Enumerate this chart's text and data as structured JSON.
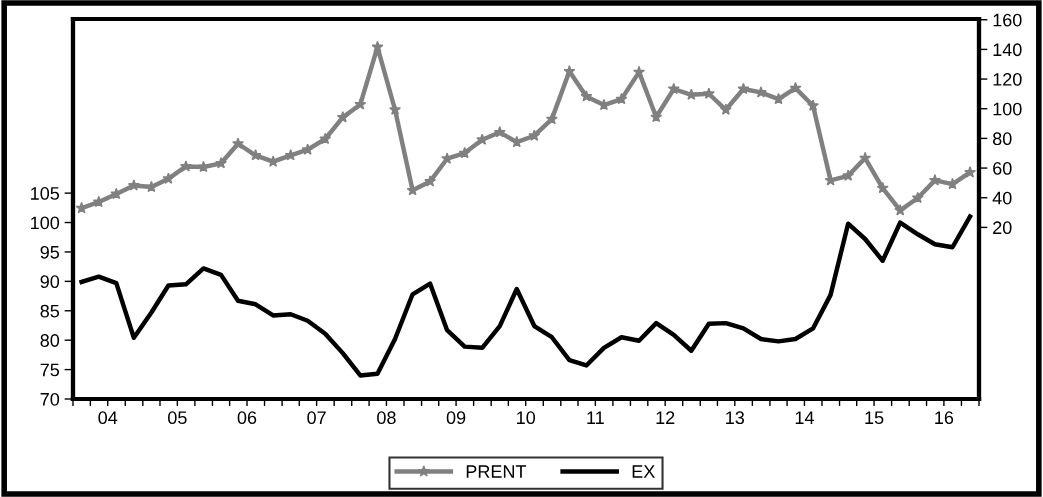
{
  "chart_data": {
    "type": "line",
    "x": [
      "2004-02-15",
      "2004-05-15",
      "2004-08-15",
      "2004-11-15",
      "2005-02-15",
      "2005-05-15",
      "2005-08-15",
      "2005-11-15",
      "2006-02-15",
      "2006-05-15",
      "2006-08-15",
      "2006-11-15",
      "2007-02-15",
      "2007-05-15",
      "2007-08-15",
      "2007-11-15",
      "2008-02-15",
      "2008-05-15",
      "2008-08-15",
      "2008-11-15",
      "2009-02-15",
      "2009-05-15",
      "2009-08-15",
      "2009-11-15",
      "2010-02-15",
      "2010-05-15",
      "2010-08-15",
      "2010-11-15",
      "2011-02-15",
      "2011-05-15",
      "2011-08-15",
      "2011-11-15",
      "2012-02-15",
      "2012-05-15",
      "2012-08-15",
      "2012-11-15",
      "2013-02-15",
      "2013-05-15",
      "2013-08-15",
      "2013-11-15",
      "2014-02-15",
      "2014-05-15",
      "2014-08-15",
      "2014-11-15",
      "2015-02-15",
      "2015-05-15",
      "2015-08-15",
      "2015-11-15",
      "2016-02-15",
      "2016-05-15",
      "2016-08-15",
      "2016-11-15"
    ],
    "series": [
      {
        "name": "PRENT",
        "color": "#808080",
        "axis": "y2",
        "marker": "star",
        "values": [
          33.0,
          37.1,
          42.5,
          48.3,
          47.2,
          52.8,
          61.1,
          60.7,
          63.2,
          76.4,
          68.6,
          64.3,
          68.6,
          72.4,
          79.6,
          94.2,
          102.9,
          141.6,
          99.3,
          45.0,
          51.0,
          66.3,
          70.1,
          79.1,
          84.1,
          77.5,
          81.8,
          93.0,
          125.2,
          108.3,
          102.5,
          106.5,
          124.7,
          94.4,
          113.3,
          109.4,
          110.1,
          99.3,
          113.3,
          111.0,
          106.5,
          113.9,
          102.0,
          51.7,
          54.8,
          66.7,
          46.5,
          31.5,
          39.8,
          51.7,
          49.2,
          57.1
        ]
      },
      {
        "name": "EX",
        "color": "#000000",
        "axis": "y",
        "marker": "none",
        "values": [
          89.9,
          90.8,
          89.7,
          80.4,
          84.7,
          89.3,
          89.5,
          92.2,
          91.1,
          86.7,
          86.1,
          84.2,
          84.4,
          83.3,
          81.1,
          77.8,
          74.0,
          74.3,
          80.2,
          87.8,
          89.6,
          81.7,
          78.9,
          78.7,
          82.4,
          88.7,
          82.4,
          80.5,
          76.6,
          75.7,
          78.7,
          80.5,
          79.9,
          82.9,
          80.9,
          78.2,
          82.8,
          82.9,
          82.0,
          80.2,
          79.8,
          80.2,
          82.0,
          87.7,
          99.8,
          97.2,
          93.5,
          100.0,
          98.0,
          96.3,
          95.8,
          101.0
        ]
      }
    ],
    "xlim": [
      "2004-01-01",
      "2017-01-01"
    ],
    "xticks": [
      {
        "value": "2004-01-01",
        "label": null
      },
      {
        "value": "2004-04-01",
        "label": null
      },
      {
        "value": "2004-07-01",
        "label": "04"
      },
      {
        "value": "2004-10-01",
        "label": null
      },
      {
        "value": "2005-01-01",
        "label": null
      },
      {
        "value": "2005-04-01",
        "label": null
      },
      {
        "value": "2005-07-01",
        "label": "05"
      },
      {
        "value": "2005-10-01",
        "label": null
      },
      {
        "value": "2006-01-01",
        "label": null
      },
      {
        "value": "2006-04-01",
        "label": null
      },
      {
        "value": "2006-07-01",
        "label": "06"
      },
      {
        "value": "2006-10-01",
        "label": null
      },
      {
        "value": "2007-01-01",
        "label": null
      },
      {
        "value": "2007-04-01",
        "label": null
      },
      {
        "value": "2007-07-01",
        "label": "07"
      },
      {
        "value": "2007-10-01",
        "label": null
      },
      {
        "value": "2008-01-01",
        "label": null
      },
      {
        "value": "2008-04-01",
        "label": null
      },
      {
        "value": "2008-07-01",
        "label": "08"
      },
      {
        "value": "2008-10-01",
        "label": null
      },
      {
        "value": "2009-01-01",
        "label": null
      },
      {
        "value": "2009-04-01",
        "label": null
      },
      {
        "value": "2009-07-01",
        "label": "09"
      },
      {
        "value": "2009-10-01",
        "label": null
      },
      {
        "value": "2010-01-01",
        "label": null
      },
      {
        "value": "2010-04-01",
        "label": null
      },
      {
        "value": "2010-07-01",
        "label": "10"
      },
      {
        "value": "2010-10-01",
        "label": null
      },
      {
        "value": "2011-01-01",
        "label": null
      },
      {
        "value": "2011-04-01",
        "label": null
      },
      {
        "value": "2011-07-01",
        "label": "11"
      },
      {
        "value": "2011-10-01",
        "label": null
      },
      {
        "value": "2012-01-01",
        "label": null
      },
      {
        "value": "2012-04-01",
        "label": null
      },
      {
        "value": "2012-07-01",
        "label": "12"
      },
      {
        "value": "2012-10-01",
        "label": null
      },
      {
        "value": "2013-01-01",
        "label": null
      },
      {
        "value": "2013-04-01",
        "label": null
      },
      {
        "value": "2013-07-01",
        "label": "13"
      },
      {
        "value": "2013-10-01",
        "label": null
      },
      {
        "value": "2014-01-01",
        "label": null
      },
      {
        "value": "2014-04-01",
        "label": null
      },
      {
        "value": "2014-07-01",
        "label": "14"
      },
      {
        "value": "2014-10-01",
        "label": null
      },
      {
        "value": "2015-01-01",
        "label": null
      },
      {
        "value": "2015-04-01",
        "label": null
      },
      {
        "value": "2015-07-01",
        "label": "15"
      },
      {
        "value": "2015-10-01",
        "label": null
      },
      {
        "value": "2016-01-01",
        "label": null
      },
      {
        "value": "2016-04-01",
        "label": null
      },
      {
        "value": "2016-07-01",
        "label": "16"
      },
      {
        "value": "2016-10-01",
        "label": null
      },
      {
        "value": "2017-01-01",
        "label": null
      }
    ],
    "ylim": [
      70,
      134.6
    ],
    "yticks": [
      70,
      75,
      80,
      85,
      90,
      95,
      100,
      105
    ],
    "y2lim": [
      -95.7,
      160.5
    ],
    "y2ticks": [
      20,
      40,
      60,
      80,
      100,
      120,
      140,
      160
    ],
    "grid": false,
    "legend": "bottom",
    "line_style": "solid"
  }
}
